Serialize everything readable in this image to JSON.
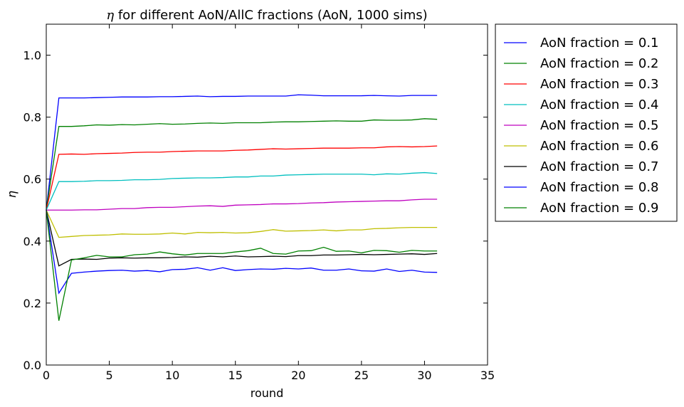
{
  "chart_data": {
    "type": "line",
    "title_symbol": "η",
    "title_rest": " for different AoN/AllC fractions (AoN, 1000 sims)",
    "xlabel": "round",
    "ylabel": "η",
    "xlim": [
      0,
      35
    ],
    "ylim": [
      0,
      1.1
    ],
    "xticks": [
      "0",
      "5",
      "10",
      "15",
      "20",
      "25",
      "30",
      "35"
    ],
    "yticks": [
      "0.0",
      "0.2",
      "0.4",
      "0.6",
      "0.8",
      "1.0"
    ],
    "legend_position": "outside-right",
    "grid": false,
    "x": [
      0,
      1,
      2,
      3,
      4,
      5,
      6,
      7,
      8,
      9,
      10,
      11,
      12,
      13,
      14,
      15,
      16,
      17,
      18,
      19,
      20,
      21,
      22,
      23,
      24,
      25,
      26,
      27,
      28,
      29,
      30,
      31
    ],
    "series": [
      {
        "name": "AoN fraction = 0.1",
        "color": "#0000ff",
        "values": [
          0.5,
          0.862,
          0.862,
          0.862,
          0.863,
          0.864,
          0.865,
          0.865,
          0.865,
          0.866,
          0.866,
          0.867,
          0.868,
          0.866,
          0.867,
          0.867,
          0.868,
          0.868,
          0.868,
          0.868,
          0.872,
          0.871,
          0.869,
          0.869,
          0.869,
          0.869,
          0.87,
          0.869,
          0.868,
          0.87,
          0.87,
          0.87
        ]
      },
      {
        "name": "AoN fraction = 0.2",
        "color": "#008000",
        "values": [
          0.5,
          0.77,
          0.77,
          0.772,
          0.775,
          0.774,
          0.776,
          0.775,
          0.777,
          0.779,
          0.777,
          0.778,
          0.78,
          0.781,
          0.78,
          0.782,
          0.782,
          0.782,
          0.784,
          0.785,
          0.785,
          0.786,
          0.787,
          0.788,
          0.787,
          0.787,
          0.791,
          0.79,
          0.79,
          0.791,
          0.795,
          0.793
        ]
      },
      {
        "name": "AoN fraction = 0.3",
        "color": "#ff0000",
        "values": [
          0.5,
          0.68,
          0.681,
          0.68,
          0.682,
          0.683,
          0.684,
          0.686,
          0.687,
          0.687,
          0.689,
          0.69,
          0.691,
          0.691,
          0.691,
          0.693,
          0.694,
          0.696,
          0.698,
          0.697,
          0.698,
          0.699,
          0.7,
          0.7,
          0.7,
          0.701,
          0.701,
          0.704,
          0.705,
          0.704,
          0.705,
          0.707
        ]
      },
      {
        "name": "AoN fraction = 0.4",
        "color": "#00bfbf",
        "values": [
          0.5,
          0.592,
          0.592,
          0.593,
          0.595,
          0.595,
          0.596,
          0.598,
          0.598,
          0.599,
          0.602,
          0.603,
          0.604,
          0.604,
          0.605,
          0.607,
          0.607,
          0.61,
          0.61,
          0.613,
          0.614,
          0.615,
          0.616,
          0.616,
          0.616,
          0.616,
          0.614,
          0.617,
          0.616,
          0.619,
          0.621,
          0.618
        ]
      },
      {
        "name": "AoN fraction = 0.5",
        "color": "#bf00bf",
        "values": [
          0.5,
          0.5,
          0.5,
          0.501,
          0.501,
          0.503,
          0.505,
          0.505,
          0.508,
          0.509,
          0.509,
          0.511,
          0.513,
          0.514,
          0.512,
          0.516,
          0.517,
          0.518,
          0.52,
          0.52,
          0.521,
          0.523,
          0.524,
          0.526,
          0.527,
          0.528,
          0.529,
          0.53,
          0.53,
          0.533,
          0.535,
          0.535
        ]
      },
      {
        "name": "AoN fraction = 0.6",
        "color": "#bfbf00",
        "values": [
          0.5,
          0.412,
          0.415,
          0.418,
          0.419,
          0.42,
          0.423,
          0.422,
          0.422,
          0.423,
          0.426,
          0.423,
          0.428,
          0.427,
          0.428,
          0.426,
          0.427,
          0.431,
          0.437,
          0.432,
          0.433,
          0.434,
          0.436,
          0.433,
          0.436,
          0.436,
          0.44,
          0.441,
          0.443,
          0.444,
          0.444,
          0.444
        ]
      },
      {
        "name": "AoN fraction = 0.7",
        "color": "#000000",
        "values": [
          0.5,
          0.32,
          0.341,
          0.342,
          0.341,
          0.345,
          0.346,
          0.345,
          0.346,
          0.346,
          0.347,
          0.349,
          0.348,
          0.351,
          0.349,
          0.352,
          0.349,
          0.35,
          0.351,
          0.35,
          0.353,
          0.353,
          0.355,
          0.355,
          0.356,
          0.357,
          0.356,
          0.357,
          0.358,
          0.359,
          0.357,
          0.36
        ]
      },
      {
        "name": "AoN fraction = 0.8",
        "color": "#0000ff",
        "values": [
          0.5,
          0.232,
          0.296,
          0.3,
          0.303,
          0.305,
          0.306,
          0.303,
          0.305,
          0.301,
          0.308,
          0.309,
          0.314,
          0.306,
          0.314,
          0.305,
          0.308,
          0.31,
          0.309,
          0.312,
          0.31,
          0.313,
          0.306,
          0.306,
          0.31,
          0.304,
          0.303,
          0.31,
          0.302,
          0.306,
          0.3,
          0.299
        ]
      },
      {
        "name": "AoN fraction = 0.9",
        "color": "#008000",
        "values": [
          0.5,
          0.143,
          0.339,
          0.346,
          0.354,
          0.349,
          0.349,
          0.356,
          0.358,
          0.365,
          0.359,
          0.355,
          0.36,
          0.36,
          0.36,
          0.365,
          0.369,
          0.377,
          0.36,
          0.358,
          0.368,
          0.369,
          0.38,
          0.367,
          0.368,
          0.362,
          0.37,
          0.369,
          0.364,
          0.37,
          0.368,
          0.368
        ]
      }
    ]
  }
}
